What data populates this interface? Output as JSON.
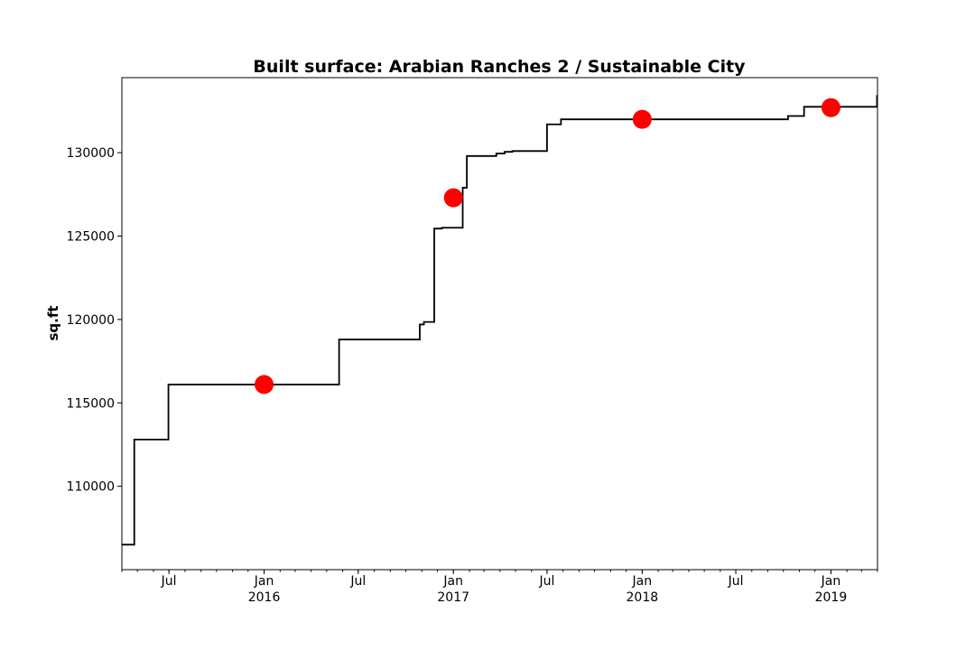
{
  "chart_data": {
    "type": "line",
    "title": "Built surface: Arabian Ranches 2 / Sustainable City",
    "xlabel": "",
    "ylabel": "sq.ft",
    "xlim": [
      "2015-04-01",
      "2019-04-01"
    ],
    "ylim": [
      105000,
      134500
    ],
    "y_ticks": [
      110000,
      115000,
      120000,
      125000,
      130000
    ],
    "x_ticks": [
      {
        "date": "2015-07-01",
        "label": "Jul",
        "sublabel": ""
      },
      {
        "date": "2016-01-01",
        "label": "Jan",
        "sublabel": "2016"
      },
      {
        "date": "2016-07-01",
        "label": "Jul",
        "sublabel": ""
      },
      {
        "date": "2017-01-01",
        "label": "Jan",
        "sublabel": "2017"
      },
      {
        "date": "2017-07-01",
        "label": "Jul",
        "sublabel": ""
      },
      {
        "date": "2018-01-01",
        "label": "Jan",
        "sublabel": "2018"
      },
      {
        "date": "2018-07-01",
        "label": "Jul",
        "sublabel": ""
      },
      {
        "date": "2019-01-01",
        "label": "Jan",
        "sublabel": "2019"
      }
    ],
    "grid": false,
    "series": [
      {
        "type": "step",
        "color": "#000000",
        "points": [
          [
            "2015-04-01",
            106500
          ],
          [
            "2015-04-25",
            112800
          ],
          [
            "2015-06-30",
            116100
          ],
          [
            "2016-05-25",
            118800
          ],
          [
            "2016-10-28",
            119700
          ],
          [
            "2016-11-05",
            119850
          ],
          [
            "2016-11-25",
            125450
          ],
          [
            "2016-12-10",
            125500
          ],
          [
            "2017-01-19",
            127900
          ],
          [
            "2017-01-27",
            129800
          ],
          [
            "2017-03-25",
            129950
          ],
          [
            "2017-04-10",
            130050
          ],
          [
            "2017-04-25",
            130100
          ],
          [
            "2017-07-01",
            131700
          ],
          [
            "2017-07-28",
            132000
          ],
          [
            "2018-10-10",
            132200
          ],
          [
            "2018-11-10",
            132750
          ],
          [
            "2019-03-31",
            133400
          ]
        ],
        "end": "2019-04-01"
      },
      {
        "type": "scatter",
        "color": "#ff0000",
        "points": [
          [
            "2016-01-01",
            116100
          ],
          [
            "2017-01-01",
            127300
          ],
          [
            "2018-01-01",
            132000
          ],
          [
            "2019-01-01",
            132700
          ]
        ]
      }
    ]
  }
}
